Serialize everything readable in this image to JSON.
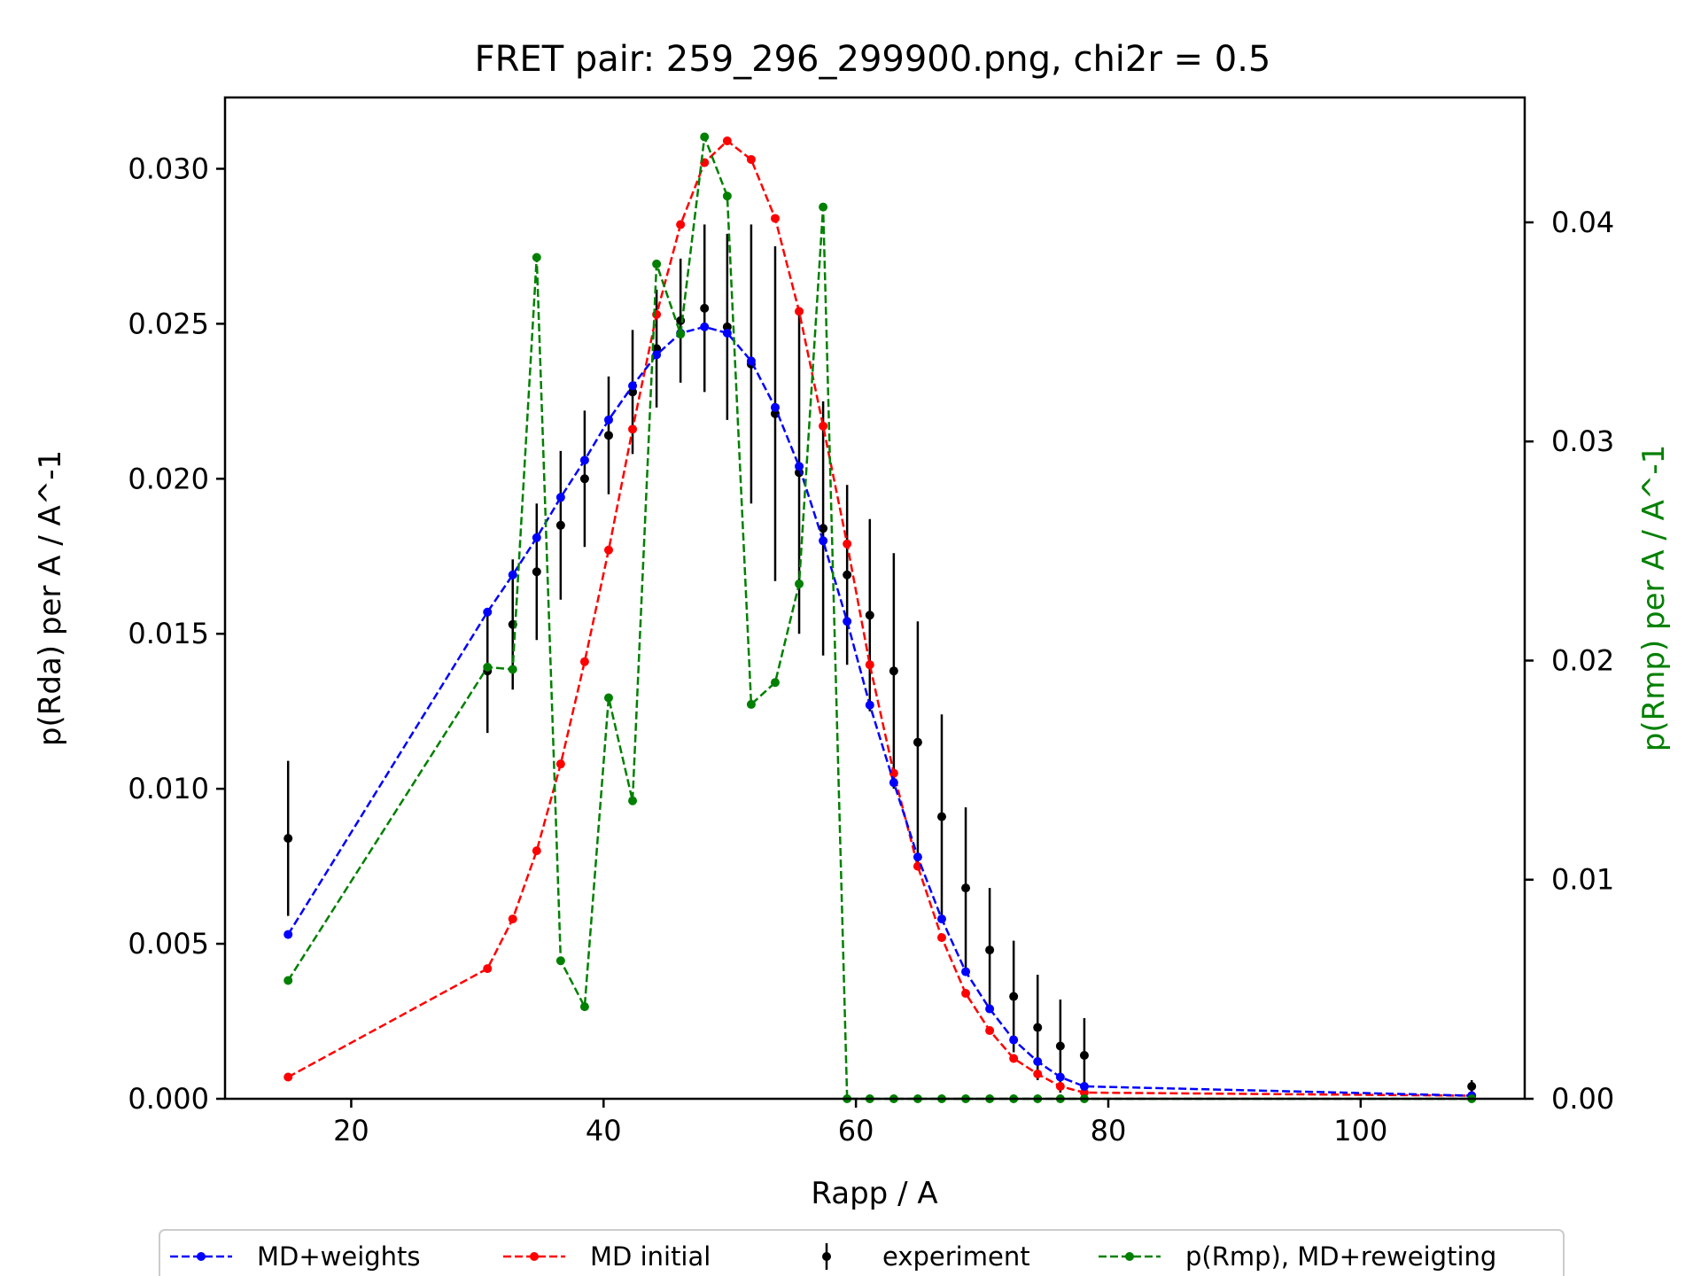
{
  "chart_data": {
    "type": "line",
    "title": "FRET pair: 259_296_299900.png, chi2r = 0.5",
    "xlabel": "Rapp / A",
    "ylabel": "p(Rda) per A / A^-1",
    "ylabel_right": "p(Rmp) per A / A^-1",
    "xlim": [
      10,
      113
    ],
    "ylim": [
      0,
      0.0323
    ],
    "ylim_right": [
      0,
      0.0457
    ],
    "x_ticks": [
      20,
      40,
      60,
      80,
      100
    ],
    "x_tick_labels": [
      "20",
      "40",
      "60",
      "80",
      "100"
    ],
    "y_ticks": [
      0,
      0.005,
      0.01,
      0.015,
      0.02,
      0.025,
      0.03
    ],
    "y_tick_labels": [
      "0.000",
      "0.005",
      "0.010",
      "0.015",
      "0.020",
      "0.025",
      "0.030"
    ],
    "y_right_ticks": [
      0,
      0.01,
      0.02,
      0.03,
      0.04
    ],
    "y_right_tick_labels": [
      "0.00",
      "0.01",
      "0.02",
      "0.03",
      "0.04"
    ],
    "grid": false,
    "legend_position": "bottom-outside",
    "x": [
      15,
      30.8,
      32.8,
      34.7,
      36.6,
      38.5,
      40.4,
      42.3,
      44.2,
      46.1,
      48.0,
      49.8,
      51.7,
      53.6,
      55.5,
      57.4,
      59.3,
      61.1,
      63.0,
      64.9,
      66.8,
      68.7,
      70.6,
      72.5,
      74.4,
      76.2,
      78.1,
      108.8
    ],
    "series": [
      {
        "name": "MD+weights",
        "axis": "left",
        "color": "#0000ff",
        "style": "dashed-dots",
        "values": [
          0.0053,
          0.0157,
          0.0169,
          0.0181,
          0.0194,
          0.0206,
          0.0219,
          0.023,
          0.024,
          0.0247,
          0.0249,
          0.0247,
          0.0238,
          0.0223,
          0.0204,
          0.018,
          0.0154,
          0.0127,
          0.0102,
          0.0078,
          0.0058,
          0.0041,
          0.0029,
          0.0019,
          0.0012,
          0.0007,
          0.0004,
          0.0001
        ]
      },
      {
        "name": "MD initial",
        "axis": "left",
        "color": "#ff0000",
        "style": "dashed-dots",
        "values": [
          0.0007,
          0.0042,
          0.0058,
          0.008,
          0.0108,
          0.0141,
          0.0177,
          0.0216,
          0.0253,
          0.0282,
          0.0302,
          0.0309,
          0.0303,
          0.0284,
          0.0254,
          0.0217,
          0.0179,
          0.014,
          0.0105,
          0.0075,
          0.0052,
          0.0034,
          0.0022,
          0.0013,
          0.0008,
          0.0004,
          0.0002,
          0.0001
        ]
      },
      {
        "name": "experiment",
        "axis": "left",
        "color": "#000000",
        "style": "errorbar",
        "values": [
          0.0084,
          0.0138,
          0.0153,
          0.017,
          0.0185,
          0.02,
          0.0214,
          0.0228,
          0.0242,
          0.0251,
          0.0255,
          0.0249,
          0.0237,
          0.0221,
          0.0202,
          0.0184,
          0.0169,
          0.0156,
          0.0138,
          0.0115,
          0.0091,
          0.0068,
          0.0048,
          0.0033,
          0.0023,
          0.0017,
          0.0014,
          0.0004
        ],
        "errors": [
          0.0025,
          0.002,
          0.0021,
          0.0022,
          0.0024,
          0.0022,
          0.0019,
          0.002,
          0.0019,
          0.002,
          0.0027,
          0.003,
          0.0045,
          0.0054,
          0.0052,
          0.0041,
          0.0029,
          0.0031,
          0.0038,
          0.0039,
          0.0033,
          0.0026,
          0.002,
          0.0018,
          0.0017,
          0.0015,
          0.0012,
          0.0002
        ]
      },
      {
        "name": "p(Rmp), MD+reweigting",
        "axis": "right",
        "color": "#008000",
        "style": "dashed-dots",
        "values": [
          0.0054,
          0.0197,
          0.0196,
          0.0384,
          0.0063,
          0.0042,
          0.0183,
          0.0136,
          0.0381,
          0.0349,
          0.0439,
          0.0412,
          0.018,
          0.019,
          0.0235,
          0.0407,
          0.0,
          0.0,
          0.0,
          0.0,
          0.0,
          0.0,
          0.0,
          0.0,
          0.0,
          0.0,
          0.0,
          0.0
        ]
      }
    ]
  }
}
